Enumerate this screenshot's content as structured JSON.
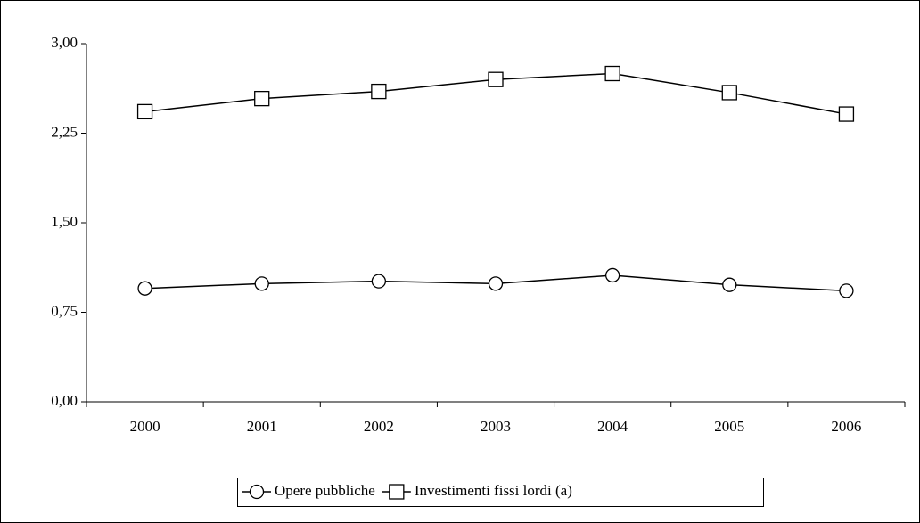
{
  "chart_data": {
    "type": "line",
    "categories": [
      "2000",
      "2001",
      "2002",
      "2003",
      "2004",
      "2005",
      "2006"
    ],
    "series": [
      {
        "name": "Opere pubbliche",
        "color": "#000000",
        "marker": "circle",
        "values": [
          0.95,
          0.99,
          1.01,
          0.99,
          1.06,
          0.98,
          0.93
        ]
      },
      {
        "name": "Investimenti fissi lordi (a)",
        "color": "#000000",
        "marker": "square",
        "values": [
          2.43,
          2.54,
          2.6,
          2.7,
          2.75,
          2.59,
          2.41
        ]
      }
    ],
    "ylim": [
      0,
      3
    ],
    "yticks": [
      {
        "value": 0,
        "label": "0,00"
      },
      {
        "value": 0.75,
        "label": "0,75"
      },
      {
        "value": 1.5,
        "label": "1,50"
      },
      {
        "value": 2.25,
        "label": "2,25"
      },
      {
        "value": 3,
        "label": "3,00"
      }
    ],
    "grid": false,
    "legend": "bottom"
  }
}
